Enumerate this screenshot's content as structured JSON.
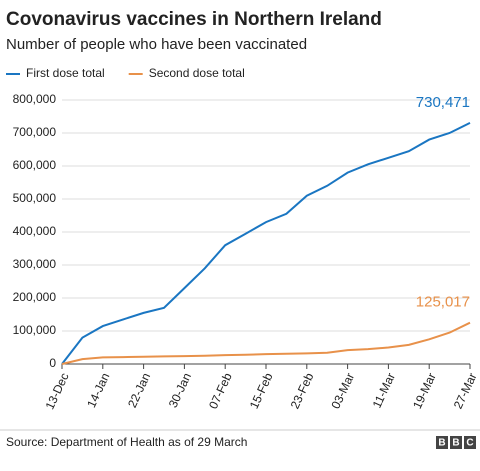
{
  "chart_data": {
    "type": "line",
    "title": "Covonavirus vaccines in Northern Ireland",
    "subtitle": "Number of people who have been vaccinated",
    "source": "Source: Department of Health as of 29 March",
    "logo": "BBC",
    "categories": [
      "13-Dec",
      null,
      "14-Jan",
      null,
      "22-Jan",
      null,
      "30-Jan",
      null,
      "07-Feb",
      null,
      "15-Feb",
      null,
      "23-Feb",
      null,
      "03-Mar",
      null,
      "11-Mar",
      null,
      "19-Mar",
      null,
      "27-Mar"
    ],
    "series": [
      {
        "name": "First dose total",
        "color": "#1a76c2",
        "values": [
          0,
          80000,
          115000,
          135000,
          155000,
          170000,
          230000,
          290000,
          360000,
          395000,
          430000,
          455000,
          510000,
          540000,
          580000,
          605000,
          625000,
          645000,
          680000,
          700000,
          730471
        ],
        "value_labels": [
          null,
          null,
          null,
          null,
          null,
          null,
          null,
          null,
          null,
          null,
          null,
          null,
          null,
          null,
          null,
          null,
          null,
          null,
          null,
          null,
          "730,471"
        ]
      },
      {
        "name": "Second dose total",
        "color": "#e8914a",
        "values": [
          0,
          15000,
          20000,
          21000,
          22000,
          23000,
          24000,
          25000,
          27000,
          28000,
          30000,
          31000,
          32000,
          34000,
          42000,
          45000,
          50000,
          58000,
          75000,
          95000,
          125017
        ],
        "value_labels": [
          null,
          null,
          null,
          null,
          null,
          null,
          null,
          null,
          null,
          null,
          null,
          null,
          null,
          null,
          null,
          null,
          null,
          null,
          null,
          null,
          "125,017"
        ]
      }
    ],
    "ylim": [
      0,
      800000
    ],
    "yticks": [
      0,
      {
        "value": 100000,
        "label": "100,000"
      },
      {
        "value": 200000,
        "label": "200,000"
      },
      {
        "value": 300000,
        "label": "300,000"
      },
      {
        "value": 400000,
        "label": "400,000"
      },
      {
        "value": 500000,
        "label": "500,000"
      },
      {
        "value": 600000,
        "label": "600,000"
      },
      {
        "value": 700000,
        "label": "700,000"
      },
      {
        "value": 800000,
        "label": "800,000"
      }
    ],
    "grid": true,
    "legend": "top-left"
  }
}
